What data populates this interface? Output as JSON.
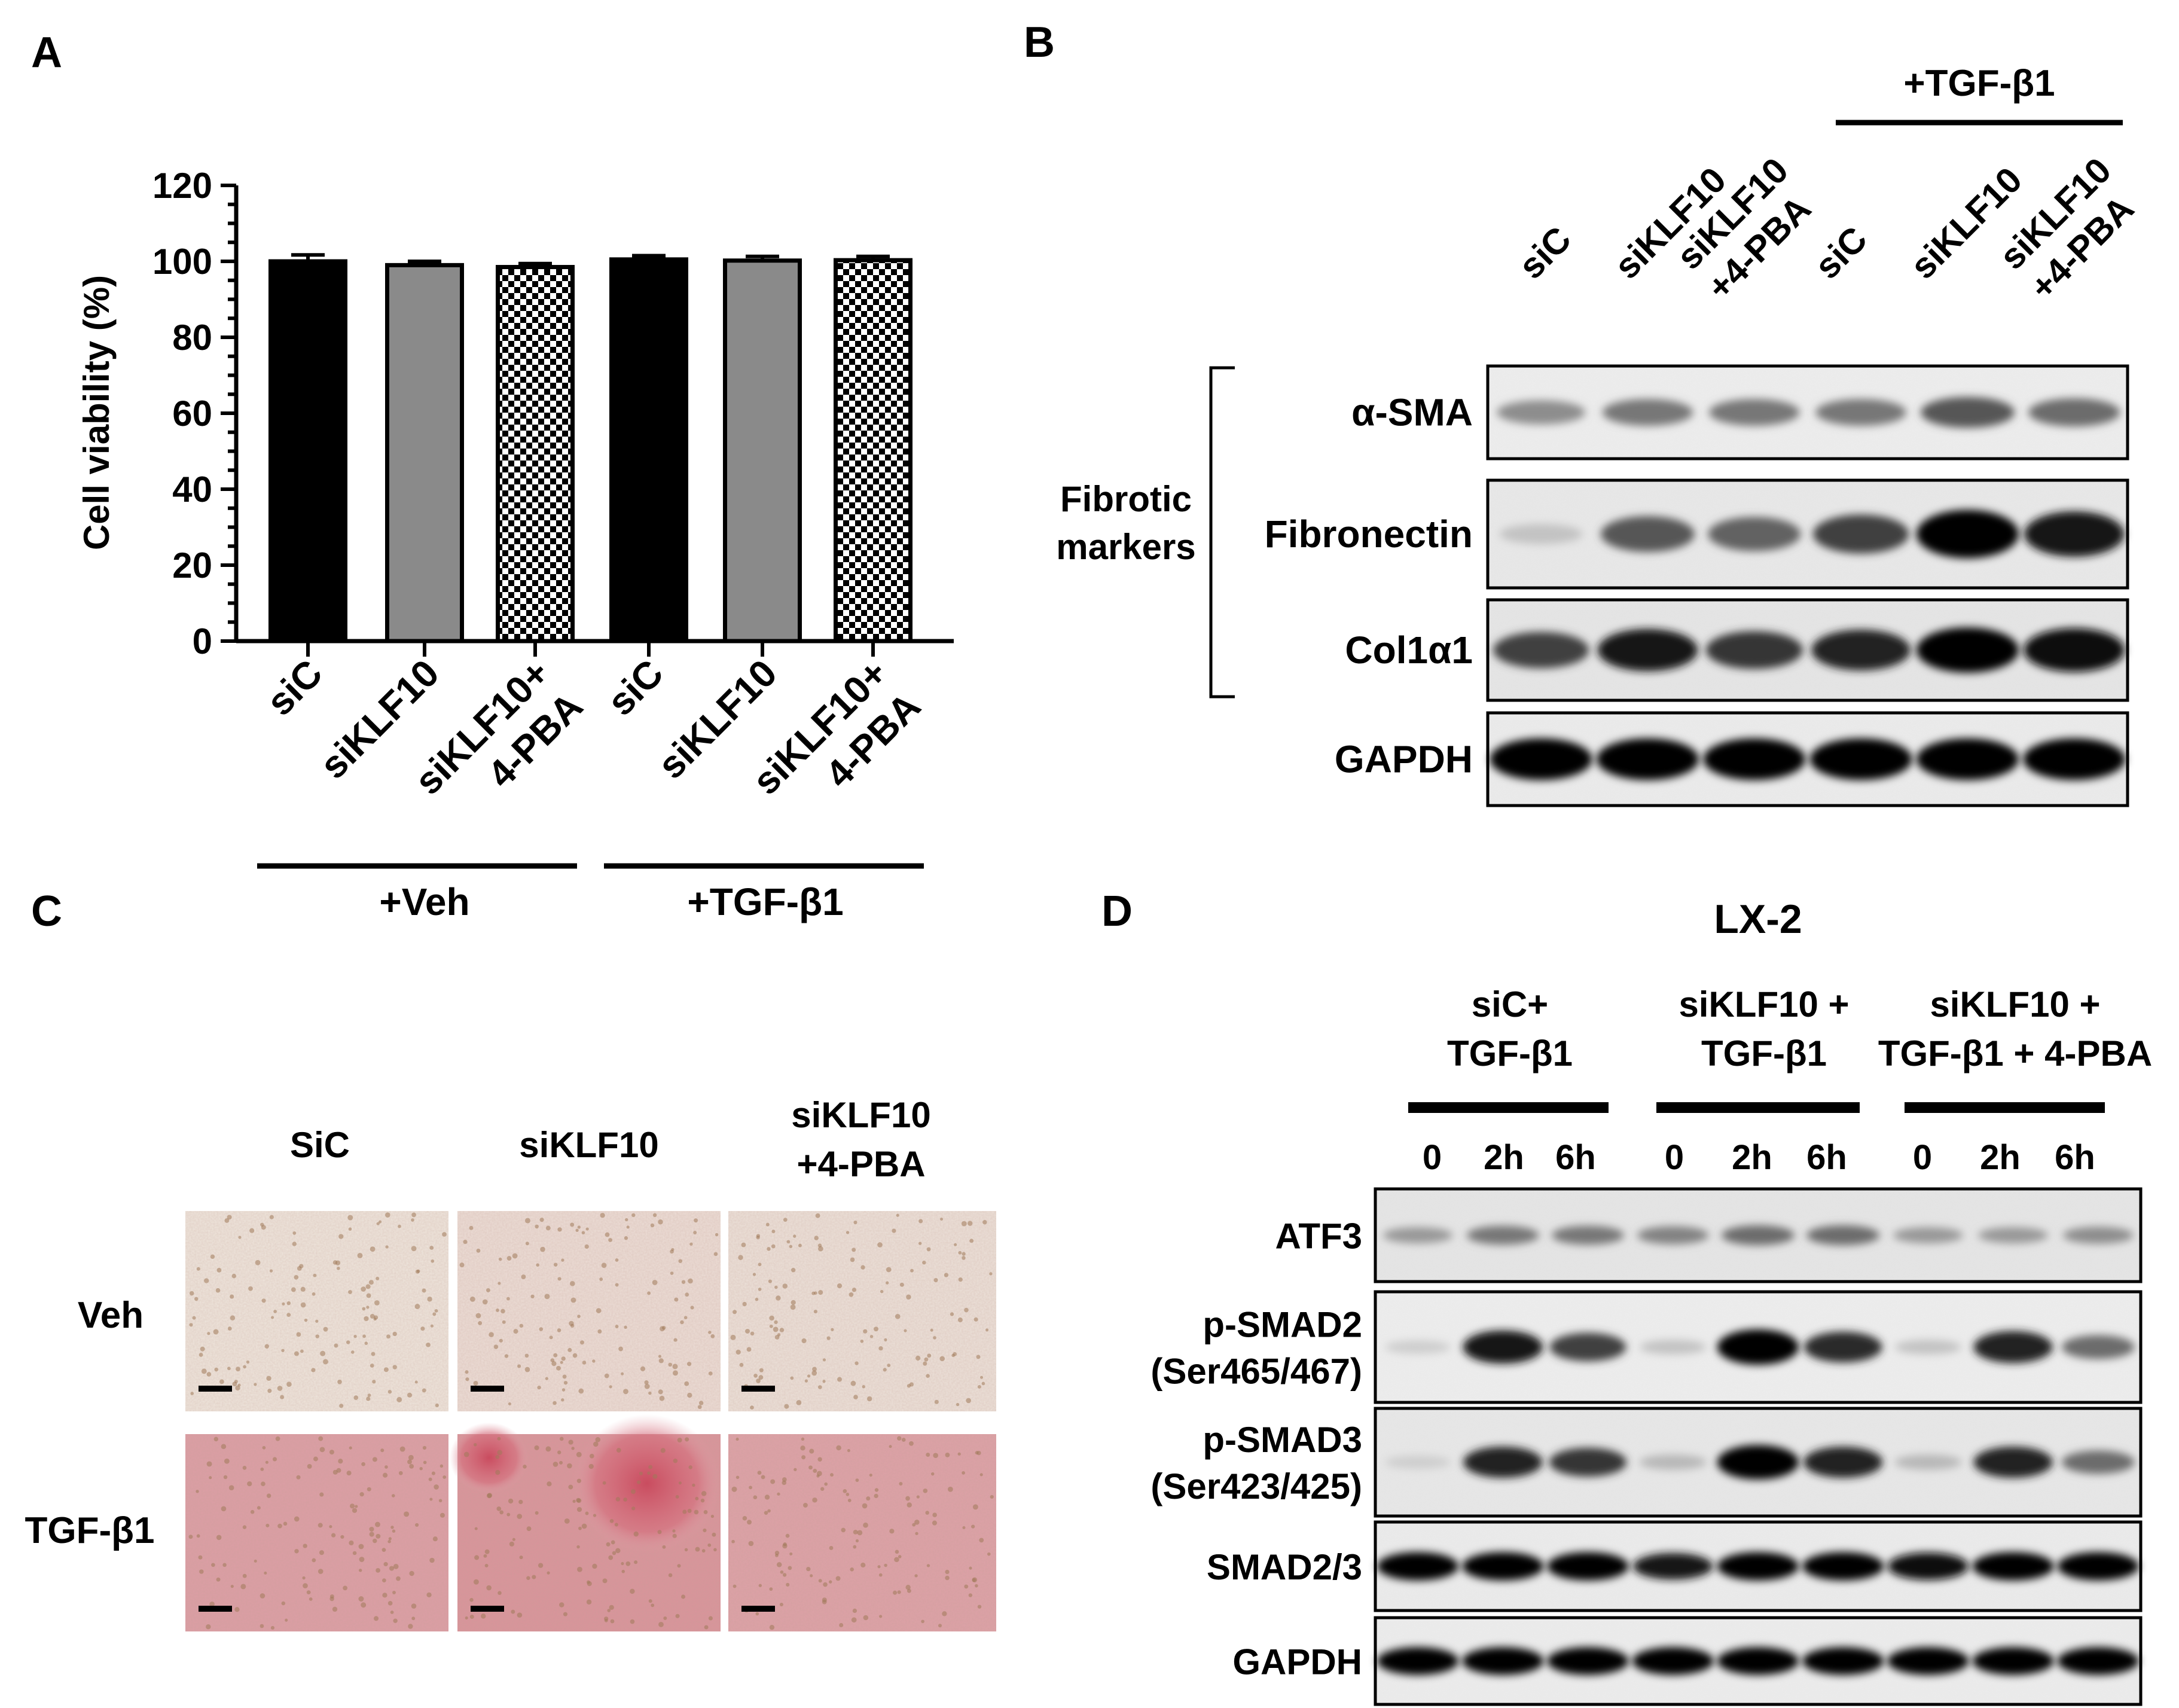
{
  "panels": {
    "a": {
      "letter": "A"
    },
    "b": {
      "letter": "B"
    },
    "c": {
      "letter": "C"
    },
    "d": {
      "letter": "D"
    }
  },
  "panel_a": {
    "veh_label": "+Veh",
    "tgf_label": "+TGF-β1"
  },
  "chart_data": {
    "type": "bar",
    "categories": [
      "siC",
      "siKLF10",
      "siKLF10+ 4-PBA",
      "siC",
      "siKLF10",
      "siKLF10+ 4-PBA"
    ],
    "tick_labels": [
      [
        "siC"
      ],
      [
        "siKLF10"
      ],
      [
        "siKLF10+",
        "4-PBA"
      ],
      [
        "siC"
      ],
      [
        "siKLF10"
      ],
      [
        "siKLF10+",
        "4-PBA"
      ]
    ],
    "values": [
      100,
      99,
      98.5,
      100.5,
      100.2,
      100.3
    ],
    "errors": [
      1.7,
      1.0,
      0.9,
      1.0,
      1.1,
      1.0
    ],
    "bar_fills": [
      "black",
      "gray",
      "checker",
      "black",
      "gray",
      "checker"
    ],
    "colors": {
      "black": "#000000",
      "gray": "#8a8a8a"
    },
    "ylabel": "Cell viability (%)",
    "ylim": [
      0,
      120
    ],
    "yticks": [
      0,
      20,
      40,
      60,
      80,
      100,
      120
    ],
    "groups": [
      "+Veh",
      "+TGF-β1"
    ]
  },
  "panel_b": {
    "treatment": "+TGF-β1",
    "lanes": [
      [
        "siC"
      ],
      [
        "siKLF10"
      ],
      [
        "siKLF10",
        "+4-PBA"
      ],
      [
        "siC"
      ],
      [
        "siKLF10"
      ],
      [
        "siKLF10",
        "+4-PBA"
      ]
    ],
    "bracket_label": [
      "Fibrotic",
      "markers"
    ],
    "blots": [
      {
        "label": "α-SMA",
        "darkness": [
          0.35,
          0.45,
          0.45,
          0.45,
          0.6,
          0.5
        ],
        "bg": "#eeeeee"
      },
      {
        "label": "Fibronectin",
        "darkness": [
          0.1,
          0.6,
          0.55,
          0.7,
          1.0,
          0.9
        ],
        "bg": "#e9e9e9"
      },
      {
        "label": "Col1α1",
        "darkness": [
          0.7,
          0.9,
          0.75,
          0.85,
          1.0,
          0.95
        ],
        "bg": "#e6e6e6"
      },
      {
        "label": "GAPDH",
        "darkness": [
          1.0,
          1.0,
          1.0,
          1.0,
          1.0,
          1.0
        ],
        "bg": "#ececec"
      }
    ]
  },
  "panel_c": {
    "columns": [
      [
        "SiC"
      ],
      [
        "siKLF10"
      ],
      [
        "siKLF10",
        "+4-PBA"
      ]
    ],
    "rows": [
      "Veh",
      "TGF-β1"
    ],
    "stain_intensity": [
      [
        0.05,
        0.15,
        0.1
      ],
      [
        0.45,
        0.7,
        0.4
      ]
    ],
    "colors": {
      "veh_bg": "#efe9e0",
      "tgf_bg": "#e2b4b8",
      "tgf_dense": "#cc5f6c",
      "nuclei": "#a07a5a"
    }
  },
  "panel_d": {
    "title": "LX-2",
    "groups": [
      {
        "label": [
          "siC+",
          "TGF-β1"
        ]
      },
      {
        "label": [
          "siKLF10 +",
          "TGF-β1"
        ]
      },
      {
        "label": [
          "siKLF10 +",
          "TGF-β1 + 4-PBA"
        ]
      }
    ],
    "timepoints": [
      "0",
      "2h",
      "6h",
      "0",
      "2h",
      "6h",
      "0",
      "2h",
      "6h"
    ],
    "blots": [
      {
        "label": [
          "ATF3"
        ],
        "darkness": [
          0.3,
          0.45,
          0.45,
          0.4,
          0.5,
          0.5,
          0.3,
          0.3,
          0.35
        ],
        "bg": "#e6e6e6"
      },
      {
        "label": [
          "p-SMAD2",
          "(Ser465/467)"
        ],
        "darkness": [
          0.05,
          0.9,
          0.7,
          0.1,
          1.0,
          0.8,
          0.1,
          0.85,
          0.5
        ],
        "bg": "#eeeeee"
      },
      {
        "label": [
          "p-SMAD3",
          "(Ser423/425)"
        ],
        "darkness": [
          0.05,
          0.85,
          0.75,
          0.15,
          1.0,
          0.85,
          0.15,
          0.85,
          0.5
        ],
        "bg": "#e8e8e8"
      },
      {
        "label": [
          "SMAD2/3"
        ],
        "darkness": [
          1.0,
          1.0,
          1.0,
          0.9,
          1.0,
          1.0,
          0.95,
          1.0,
          1.0
        ],
        "bg": "#ececec"
      },
      {
        "label": [
          "GAPDH"
        ],
        "darkness": [
          1.0,
          1.0,
          1.0,
          1.0,
          1.0,
          1.0,
          1.0,
          1.0,
          1.0
        ],
        "bg": "#ededed"
      }
    ]
  }
}
